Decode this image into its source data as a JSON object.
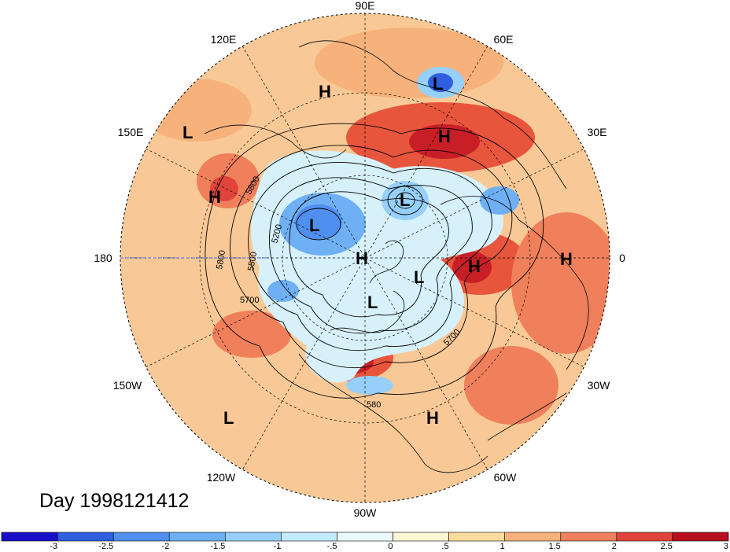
{
  "map": {
    "projection": "north-polar-stereographic",
    "longitude_labels": [
      "90E",
      "120E",
      "60E",
      "150E",
      "30E",
      "180",
      "0",
      "150W",
      "30W",
      "120W",
      "60W",
      "90W"
    ],
    "pressure_centers": [
      {
        "label": "L",
        "lon_lat_hint": "150E"
      },
      {
        "label": "H",
        "lon_lat_hint": "100E"
      },
      {
        "label": "L",
        "lon_lat_hint": "65E"
      },
      {
        "label": "H",
        "lon_lat_hint": "45E"
      },
      {
        "label": "H",
        "lon_lat_hint": "160E"
      },
      {
        "label": "L",
        "lon_lat_hint": "60E"
      },
      {
        "label": "L",
        "lon_lat_hint": "150E"
      },
      {
        "label": "H",
        "lon_lat_hint": "pole"
      },
      {
        "label": "H",
        "lon_lat_hint": "10E"
      },
      {
        "label": "H",
        "lon_lat_hint": "0"
      },
      {
        "label": "L",
        "lon_lat_hint": "30W"
      },
      {
        "label": "L",
        "lon_lat_hint": "90W"
      },
      {
        "label": "L",
        "lon_lat_hint": "140W"
      },
      {
        "label": "H",
        "lon_lat_hint": "60W"
      }
    ],
    "contour_labels": [
      "5800",
      "5200",
      "5500",
      "5800",
      "5700",
      "5700",
      "580"
    ],
    "day_label": "Day 1998121412"
  },
  "colorbar": {
    "tick_labels": [
      "-3",
      "-2.5",
      "-2",
      "-1.5",
      "-1",
      "-.5",
      "0",
      ".5",
      "1",
      "1.5",
      "2",
      "2.5",
      "3"
    ],
    "colors": [
      "#1a10c8",
      "#2f5fe0",
      "#4f8ff0",
      "#6fb0f5",
      "#96d0fa",
      "#c2ecfc",
      "#eafafe",
      "#fdf6d2",
      "#fbdc9e",
      "#f7b27c",
      "#f0805c",
      "#e0443a",
      "#b6101e"
    ]
  }
}
